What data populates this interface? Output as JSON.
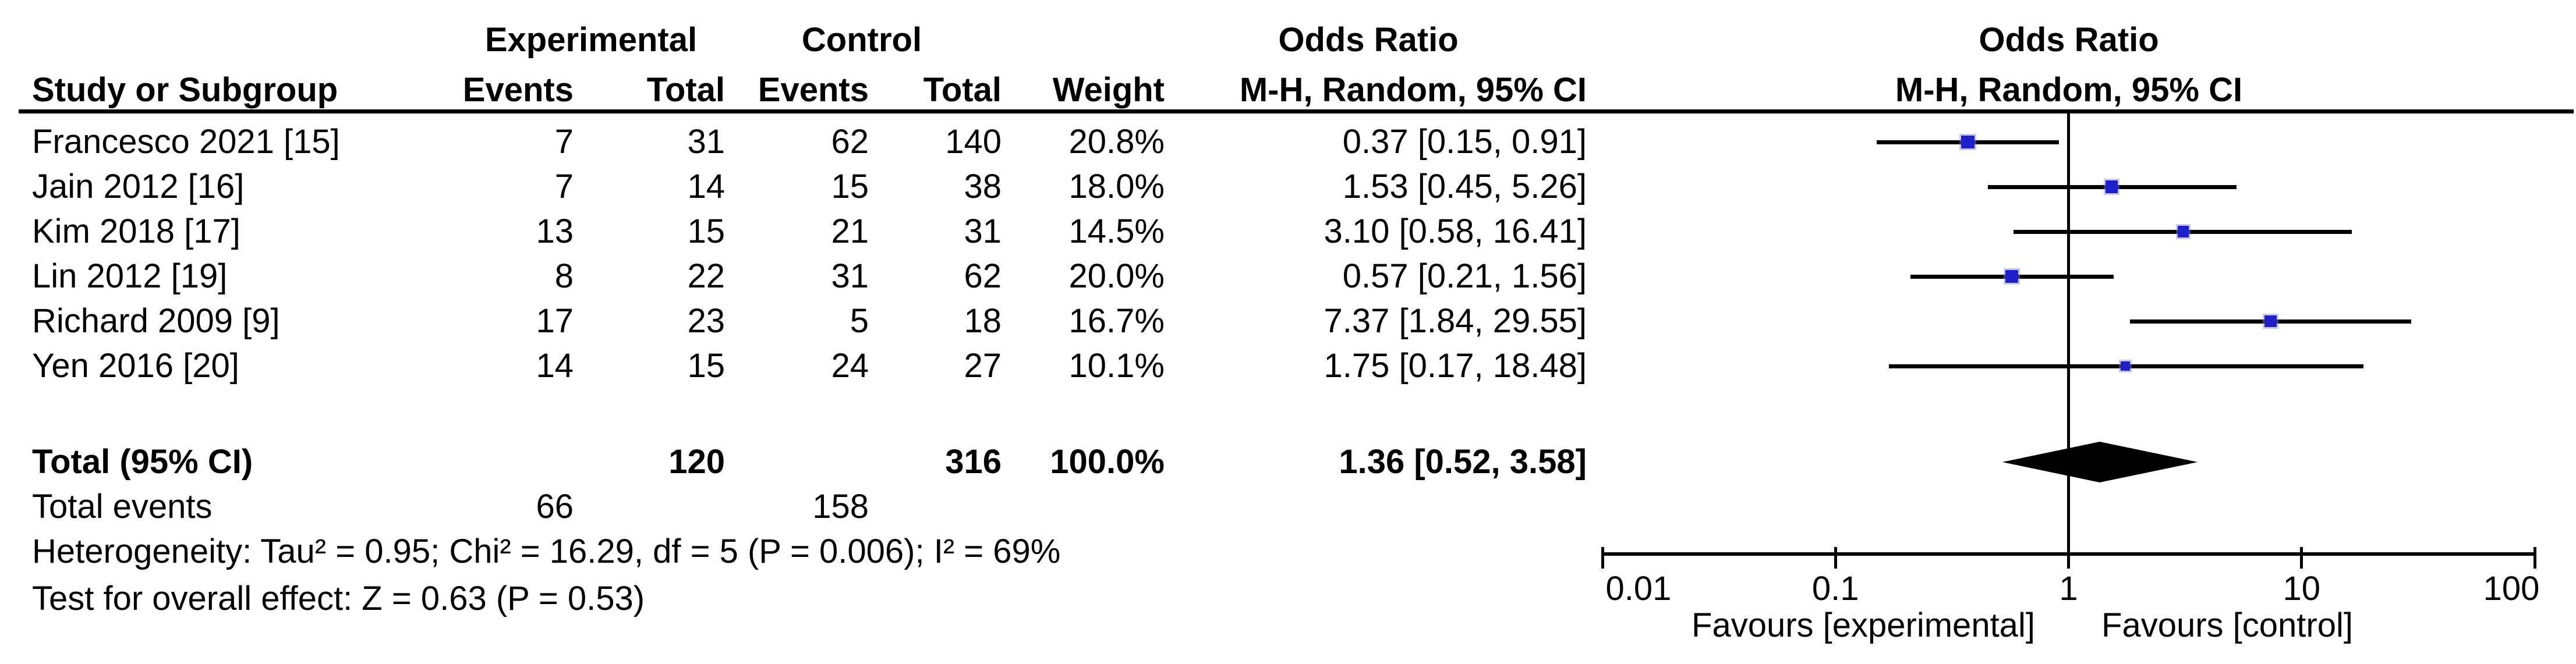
{
  "figure": {
    "group_headers": {
      "experimental": "Experimental",
      "control": "Control",
      "odds_ratio_left": "Odds Ratio",
      "odds_ratio_right": "Odds Ratio"
    },
    "column_headers": {
      "study": "Study or Subgroup",
      "exp_events": "Events",
      "exp_total": "Total",
      "ctrl_events": "Events",
      "ctrl_total": "Total",
      "weight": "Weight",
      "mh_ci_left": "M-H, Random, 95% CI",
      "mh_ci_right": "M-H, Random, 95% CI"
    },
    "rows": [
      {
        "study": "Francesco 2021 [15]",
        "exp_events": "7",
        "exp_total": "31",
        "ctrl_events": "62",
        "ctrl_total": "140",
        "weight": "20.8%",
        "or_ci": "0.37 [0.15, 0.91]"
      },
      {
        "study": "Jain 2012 [16]",
        "exp_events": "7",
        "exp_total": "14",
        "ctrl_events": "15",
        "ctrl_total": "38",
        "weight": "18.0%",
        "or_ci": "1.53 [0.45, 5.26]"
      },
      {
        "study": "Kim 2018 [17]",
        "exp_events": "13",
        "exp_total": "15",
        "ctrl_events": "21",
        "ctrl_total": "31",
        "weight": "14.5%",
        "or_ci": "3.10 [0.58, 16.41]"
      },
      {
        "study": "Lin 2012 [19]",
        "exp_events": "8",
        "exp_total": "22",
        "ctrl_events": "31",
        "ctrl_total": "62",
        "weight": "20.0%",
        "or_ci": "0.57 [0.21, 1.56]"
      },
      {
        "study": "Richard 2009 [9]",
        "exp_events": "17",
        "exp_total": "23",
        "ctrl_events": "5",
        "ctrl_total": "18",
        "weight": "16.7%",
        "or_ci": "7.37 [1.84, 29.55]"
      },
      {
        "study": "Yen 2016 [20]",
        "exp_events": "14",
        "exp_total": "15",
        "ctrl_events": "24",
        "ctrl_total": "27",
        "weight": "10.1%",
        "or_ci": "1.75 [0.17, 18.48]"
      }
    ],
    "total_row": {
      "label": "Total (95% CI)",
      "exp_total": "120",
      "ctrl_total": "316",
      "weight": "100.0%",
      "or_ci": "1.36 [0.52, 3.58]"
    },
    "total_events_row": {
      "label": "Total events",
      "exp": "66",
      "ctrl": "158"
    },
    "heterogeneity": "Heterogeneity: Tau² = 0.95; Chi² = 16.29, df = 5 (P = 0.006); I² = 69%",
    "overall_effect": "Test for overall effect: Z = 0.63 (P = 0.53)",
    "axis_ticks": [
      "0.01",
      "0.1",
      "1",
      "10",
      "100"
    ],
    "favours_left": "Favours [experimental]",
    "favours_right": "Favours [control]",
    "marker_color": "#1F1FCC",
    "line_color": "#000000"
  },
  "chart_data": {
    "type": "scatter",
    "subtype": "forest-plot",
    "title": "Odds Ratio M-H, Random, 95% CI",
    "x_scale": "log10",
    "xlim": [
      0.01,
      100
    ],
    "x_ticks": [
      0.01,
      0.1,
      1,
      10,
      100
    ],
    "null_line": 1,
    "studies": [
      {
        "name": "Francesco 2021 [15]",
        "exp_events": 7,
        "exp_total": 31,
        "ctrl_events": 62,
        "ctrl_total": 140,
        "weight_pct": 20.8,
        "or": 0.37,
        "ci_low": 0.15,
        "ci_high": 0.91
      },
      {
        "name": "Jain 2012 [16]",
        "exp_events": 7,
        "exp_total": 14,
        "ctrl_events": 15,
        "ctrl_total": 38,
        "weight_pct": 18.0,
        "or": 1.53,
        "ci_low": 0.45,
        "ci_high": 5.26
      },
      {
        "name": "Kim 2018 [17]",
        "exp_events": 13,
        "exp_total": 15,
        "ctrl_events": 21,
        "ctrl_total": 31,
        "weight_pct": 14.5,
        "or": 3.1,
        "ci_low": 0.58,
        "ci_high": 16.41
      },
      {
        "name": "Lin 2012 [19]",
        "exp_events": 8,
        "exp_total": 22,
        "ctrl_events": 31,
        "ctrl_total": 62,
        "weight_pct": 20.0,
        "or": 0.57,
        "ci_low": 0.21,
        "ci_high": 1.56
      },
      {
        "name": "Richard 2009 [9]",
        "exp_events": 17,
        "exp_total": 23,
        "ctrl_events": 5,
        "ctrl_total": 18,
        "weight_pct": 16.7,
        "or": 7.37,
        "ci_low": 1.84,
        "ci_high": 29.55
      },
      {
        "name": "Yen 2016 [20]",
        "exp_events": 14,
        "exp_total": 15,
        "ctrl_events": 24,
        "ctrl_total": 27,
        "weight_pct": 10.1,
        "or": 1.75,
        "ci_low": 0.17,
        "ci_high": 18.48
      }
    ],
    "total": {
      "or": 1.36,
      "ci_low": 0.52,
      "ci_high": 3.58,
      "exp_events": 66,
      "exp_total": 120,
      "ctrl_events": 158,
      "ctrl_total": 316,
      "weight_pct": 100.0
    },
    "heterogeneity": {
      "tau2": 0.95,
      "chi2": 16.29,
      "df": 5,
      "p": 0.006,
      "i2_pct": 69
    },
    "overall_effect": {
      "z": 0.63,
      "p": 0.53
    },
    "legend": [
      "Favours [experimental]",
      "Favours [control]"
    ]
  }
}
